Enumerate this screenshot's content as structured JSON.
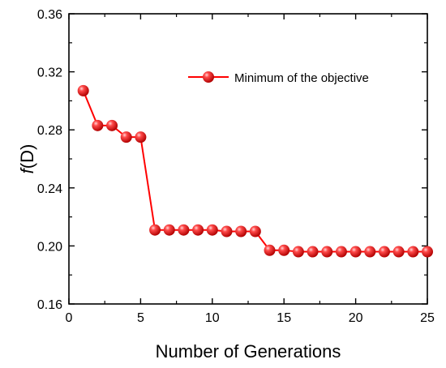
{
  "chart_data": {
    "type": "line",
    "xlabel": "Number of Generations",
    "ylabel_italic": "f",
    "ylabel_rest": "(D)",
    "xlim": [
      0,
      25
    ],
    "ylim": [
      0.16,
      0.36
    ],
    "x_ticks": [
      "0",
      "5",
      "10",
      "15",
      "20",
      "25"
    ],
    "y_ticks": [
      "0.16",
      "0.20",
      "0.24",
      "0.28",
      "0.32",
      "0.36"
    ],
    "grid": false,
    "legend_position": "top-right",
    "series": [
      {
        "name": "Minimum of the objective",
        "color": "#ff0000",
        "marker": "sphere",
        "x": [
          1,
          2,
          3,
          4,
          5,
          6,
          7,
          8,
          9,
          10,
          11,
          12,
          13,
          14,
          15,
          16,
          17,
          18,
          19,
          20,
          21,
          22,
          23,
          24,
          25
        ],
        "y": [
          0.307,
          0.283,
          0.283,
          0.275,
          0.275,
          0.211,
          0.211,
          0.211,
          0.211,
          0.211,
          0.21,
          0.21,
          0.21,
          0.197,
          0.197,
          0.196,
          0.196,
          0.196,
          0.196,
          0.196,
          0.196,
          0.196,
          0.196,
          0.196,
          0.196
        ]
      }
    ]
  }
}
